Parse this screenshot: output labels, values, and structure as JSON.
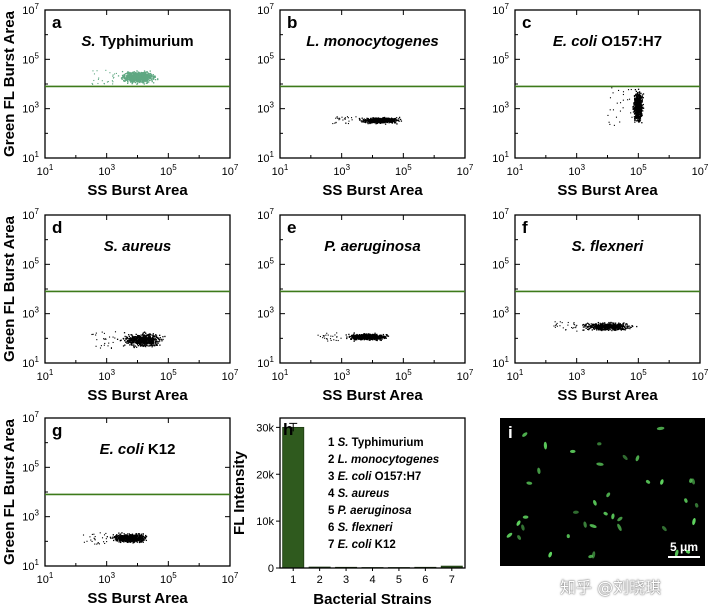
{
  "chart_data": [
    {
      "panel": "a",
      "type": "scatter",
      "title": [
        {
          "text": "S.",
          "italic": true
        },
        {
          "text": " Typhimurium",
          "italic": false
        }
      ],
      "xlabel": "SS Burst Area",
      "ylabel": "Green FL Burst Area",
      "log_scale": true,
      "xlim": [
        10,
        10000000
      ],
      "ylim": [
        10,
        10000000
      ],
      "x_ticks": [
        "10",
        "10",
        "10",
        "10"
      ],
      "x_tick_exp": [
        "1",
        "3",
        "5",
        "7"
      ],
      "y_ticks": [
        "10",
        "10",
        "10",
        "10"
      ],
      "y_tick_exp": [
        "1",
        "3",
        "5",
        "7"
      ],
      "threshold_y": 8000,
      "cluster": {
        "x_range": [
          2000,
          50000
        ],
        "y_range": [
          10000,
          40000
        ],
        "color": "#5fa882",
        "points": 900
      }
    },
    {
      "panel": "b",
      "type": "scatter",
      "title": [
        {
          "text": "L. monocytogenes",
          "italic": true
        }
      ],
      "xlabel": "SS Burst Area",
      "ylabel": "",
      "log_scale": true,
      "xlim": [
        10,
        10000000
      ],
      "ylim": [
        10,
        10000000
      ],
      "x_ticks": [
        "10",
        "10",
        "10",
        "10"
      ],
      "x_tick_exp": [
        "1",
        "3",
        "5",
        "7"
      ],
      "y_ticks": [
        "10",
        "10",
        "10",
        "10"
      ],
      "y_tick_exp": [
        "1",
        "3",
        "5",
        "7"
      ],
      "threshold_y": 8000,
      "cluster": {
        "x_range": [
          3000,
          100000
        ],
        "y_range": [
          250,
          500
        ],
        "color": "#000000",
        "points": 600
      }
    },
    {
      "panel": "c",
      "type": "scatter",
      "title": [
        {
          "text": "E. coli",
          "italic": true
        },
        {
          "text": " O157:H7",
          "italic": false
        }
      ],
      "xlabel": "SS Burst Area",
      "ylabel": "",
      "log_scale": true,
      "xlim": [
        10,
        10000000
      ],
      "ylim": [
        10,
        10000000
      ],
      "x_ticks": [
        "10",
        "10",
        "10",
        "10"
      ],
      "x_tick_exp": [
        "1",
        "3",
        "5",
        "7"
      ],
      "y_ticks": [
        "10",
        "10",
        "10",
        "10"
      ],
      "y_tick_exp": [
        "1",
        "3",
        "5",
        "7"
      ],
      "threshold_y": 8000,
      "cluster": {
        "x_range": [
          60000,
          150000
        ],
        "y_range": [
          200,
          8000
        ],
        "color": "#000000",
        "points": 600
      }
    },
    {
      "panel": "d",
      "type": "scatter",
      "title": [
        {
          "text": "S. aureus",
          "italic": true
        }
      ],
      "xlabel": "SS Burst Area",
      "ylabel": "Green FL Burst Area",
      "log_scale": true,
      "xlim": [
        10,
        10000000
      ],
      "ylim": [
        10,
        10000000
      ],
      "x_ticks": [
        "10",
        "10",
        "10",
        "10"
      ],
      "x_tick_exp": [
        "1",
        "3",
        "5",
        "7"
      ],
      "y_ticks": [
        "10",
        "10",
        "10",
        "10"
      ],
      "y_tick_exp": [
        "1",
        "3",
        "5",
        "7"
      ],
      "threshold_y": 8000,
      "cluster": {
        "x_range": [
          2000,
          100000
        ],
        "y_range": [
          40,
          200
        ],
        "color": "#000000",
        "points": 600
      }
    },
    {
      "panel": "e",
      "type": "scatter",
      "title": [
        {
          "text": "P. aeruginosa",
          "italic": true
        }
      ],
      "xlabel": "SS Burst Area",
      "ylabel": "",
      "log_scale": true,
      "xlim": [
        10,
        10000000
      ],
      "ylim": [
        10,
        10000000
      ],
      "x_ticks": [
        "10",
        "10",
        "10",
        "10"
      ],
      "x_tick_exp": [
        "1",
        "3",
        "5",
        "7"
      ],
      "y_ticks": [
        "10",
        "10",
        "10",
        "10"
      ],
      "y_tick_exp": [
        "1",
        "3",
        "5",
        "7"
      ],
      "threshold_y": 8000,
      "cluster": {
        "x_range": [
          1000,
          50000
        ],
        "y_range": [
          80,
          180
        ],
        "color": "#000000",
        "points": 600
      }
    },
    {
      "panel": "f",
      "type": "scatter",
      "title": [
        {
          "text": "S. flexneri",
          "italic": true
        }
      ],
      "xlabel": "SS Burst Area",
      "ylabel": "",
      "log_scale": true,
      "xlim": [
        10,
        10000000
      ],
      "ylim": [
        10,
        10000000
      ],
      "x_ticks": [
        "10",
        "10",
        "10",
        "10"
      ],
      "x_tick_exp": [
        "1",
        "3",
        "5",
        "7"
      ],
      "y_ticks": [
        "10",
        "10",
        "10",
        "10"
      ],
      "y_tick_exp": [
        "1",
        "3",
        "5",
        "7"
      ],
      "threshold_y": 8000,
      "cluster": {
        "x_range": [
          1000,
          100000
        ],
        "y_range": [
          200,
          500
        ],
        "color": "#000000",
        "points": 600
      }
    },
    {
      "panel": "g",
      "type": "scatter",
      "title": [
        {
          "text": "E. coli",
          "italic": true
        },
        {
          "text": " K12",
          "italic": false
        }
      ],
      "xlabel": "SS Burst Area",
      "ylabel": "Green FL Burst Area",
      "log_scale": true,
      "xlim": [
        10,
        10000000
      ],
      "ylim": [
        10,
        10000000
      ],
      "x_ticks": [
        "10",
        "10",
        "10",
        "10"
      ],
      "x_tick_exp": [
        "1",
        "3",
        "5",
        "7"
      ],
      "y_ticks": [
        "10",
        "10",
        "10",
        "10"
      ],
      "y_tick_exp": [
        "1",
        "3",
        "5",
        "7"
      ],
      "threshold_y": 8000,
      "cluster": {
        "x_range": [
          1000,
          30000
        ],
        "y_range": [
          80,
          250
        ],
        "color": "#000000",
        "points": 600
      }
    },
    {
      "panel": "h",
      "type": "bar",
      "categories": [
        "1",
        "2",
        "3",
        "4",
        "5",
        "6",
        "7"
      ],
      "values": [
        30000,
        200,
        150,
        100,
        100,
        150,
        400
      ],
      "xlabel": "Bacterial Strains",
      "ylabel": "FL Intensity",
      "ylim": [
        0,
        32000
      ],
      "y_ticks": [
        "0",
        "10k",
        "20k",
        "30k"
      ],
      "y_tick_values": [
        0,
        10000,
        20000,
        30000
      ],
      "bar_color": "#2f5a1e",
      "legend": [
        [
          {
            "text": "1 ",
            "italic": false
          },
          {
            "text": "S.",
            "italic": true
          },
          {
            "text": " Typhimurium",
            "italic": false
          }
        ],
        [
          {
            "text": "2 ",
            "italic": false
          },
          {
            "text": "L. monocytogenes",
            "italic": true
          }
        ],
        [
          {
            "text": "3 ",
            "italic": false
          },
          {
            "text": "E. coli",
            "italic": true
          },
          {
            "text": " O157:H7",
            "italic": false
          }
        ],
        [
          {
            "text": "4 ",
            "italic": false
          },
          {
            "text": "S. aureus",
            "italic": true
          }
        ],
        [
          {
            "text": "5 ",
            "italic": false
          },
          {
            "text": "P. aeruginosa",
            "italic": true
          }
        ],
        [
          {
            "text": "6 ",
            "italic": false
          },
          {
            "text": "S. flexneri",
            "italic": true
          }
        ],
        [
          {
            "text": "7 ",
            "italic": false
          },
          {
            "text": "E. coli",
            "italic": true
          },
          {
            "text": " K12",
            "italic": false
          }
        ]
      ]
    },
    {
      "panel": "i",
      "type": "image",
      "scale_bar": "5 μm",
      "cell_color": "#5fd45f"
    }
  ],
  "colors": {
    "threshold": "#3d7a1a",
    "highlight_cluster": "#5fa882",
    "points": "#000000",
    "micro_bg": "#000000"
  },
  "watermark": "知乎 @刘晓琪"
}
